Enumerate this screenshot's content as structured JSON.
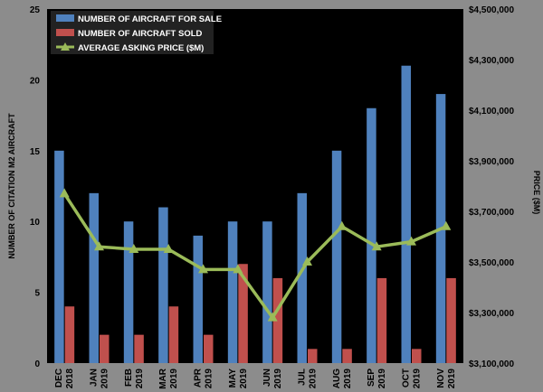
{
  "chart_data": {
    "type": "bar",
    "categories": [
      [
        "DEC",
        "2018"
      ],
      [
        "JAN",
        "2019"
      ],
      [
        "FEB",
        "2019"
      ],
      [
        "MAR",
        "2019"
      ],
      [
        "APR",
        "2019"
      ],
      [
        "MAY",
        "2019"
      ],
      [
        "JUN",
        "2019"
      ],
      [
        "JUL",
        "2019"
      ],
      [
        "AUG",
        "2019"
      ],
      [
        "SEP",
        "2019"
      ],
      [
        "OCT",
        "2019"
      ],
      [
        "NOV",
        "2019"
      ]
    ],
    "series": [
      {
        "name": "NUMBER OF AIRCRAFT FOR SALE",
        "type": "bar",
        "axis": "left",
        "color": "#4f81bd",
        "values": [
          15,
          12,
          10,
          11,
          9,
          10,
          10,
          12,
          15,
          18,
          21,
          19
        ]
      },
      {
        "name": "NUMBER OF AIRCRAFT SOLD",
        "type": "bar",
        "axis": "left",
        "color": "#c0504d",
        "values": [
          4,
          2,
          2,
          4,
          2,
          7,
          6,
          1,
          1,
          6,
          1,
          6
        ]
      },
      {
        "name": "AVERAGE ASKING PRICE ($M)",
        "type": "line",
        "axis": "right",
        "color": "#9bbb59",
        "values": [
          3770000,
          3560000,
          3550000,
          3550000,
          3470000,
          3470000,
          3280000,
          3500000,
          3640000,
          3560000,
          3580000,
          3640000
        ]
      }
    ],
    "ylabel_left": "NUMBER OF CITATION M2 AIRCRAFT",
    "ylabel_right": "PRICE ($M)",
    "ylim_left": [
      0,
      25
    ],
    "yticks_left": [
      "0",
      "5",
      "10",
      "15",
      "20",
      "25"
    ],
    "ylim_right": [
      3100000,
      4500000
    ],
    "yticks_right": [
      "$3,100,000",
      "$3,300,000",
      "$3,500,000",
      "$3,700,000",
      "$3,900,000",
      "$4,100,000",
      "$4,300,000",
      "$4,500,000"
    ],
    "grid": false,
    "legend_position": "top-left",
    "plot_background": "#000000"
  }
}
